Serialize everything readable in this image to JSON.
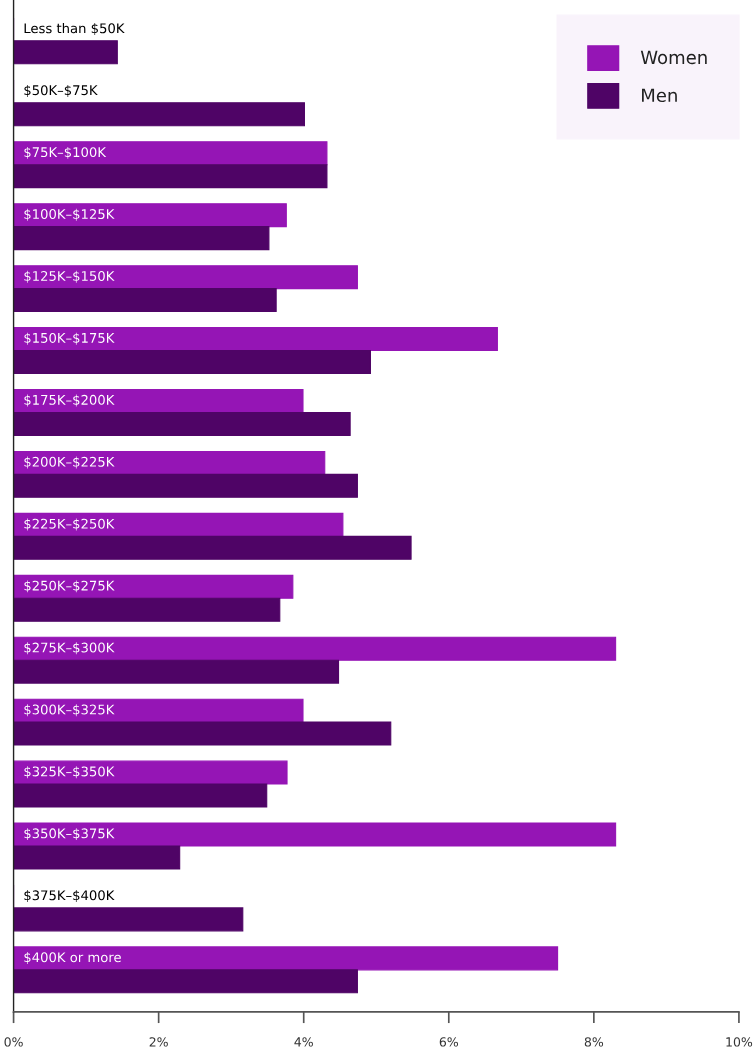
{
  "chart_data": {
    "type": "bar",
    "orientation": "horizontal",
    "categories": [
      "Less than $50K",
      "$50K–$75K",
      "$75K–$100K",
      "$100K–$125K",
      "$125K–$150K",
      "$150K–$175K",
      "$175K–$200K",
      "$200K–$225K",
      "$225K–$250K",
      "$250K–$275K",
      "$275K–$300K",
      "$300K–$325K",
      "$325K–$350K",
      "$350K–$375K",
      "$375K–$400K",
      "$400K or more"
    ],
    "series": [
      {
        "name": "Women",
        "color": "#9515b5",
        "values": [
          0,
          0,
          4.32,
          3.76,
          4.74,
          6.67,
          3.99,
          4.29,
          4.54,
          3.85,
          8.3,
          3.99,
          3.77,
          8.3,
          0,
          7.5
        ]
      },
      {
        "name": "Men",
        "color": "#4f0466",
        "values": [
          1.43,
          4.01,
          4.32,
          3.52,
          3.62,
          4.92,
          4.64,
          4.74,
          5.48,
          3.67,
          4.48,
          5.2,
          3.49,
          2.29,
          3.16,
          4.74
        ]
      }
    ],
    "xlim": [
      0,
      10
    ],
    "xticks": [
      {
        "value": 0,
        "label": "0%"
      },
      {
        "value": 2,
        "label": "2%"
      },
      {
        "value": 4,
        "label": "4%"
      },
      {
        "value": 6,
        "label": "6%"
      },
      {
        "value": 8,
        "label": "8%"
      },
      {
        "value": 10,
        "label": "10%"
      }
    ],
    "legend": "top right",
    "grid": false
  }
}
